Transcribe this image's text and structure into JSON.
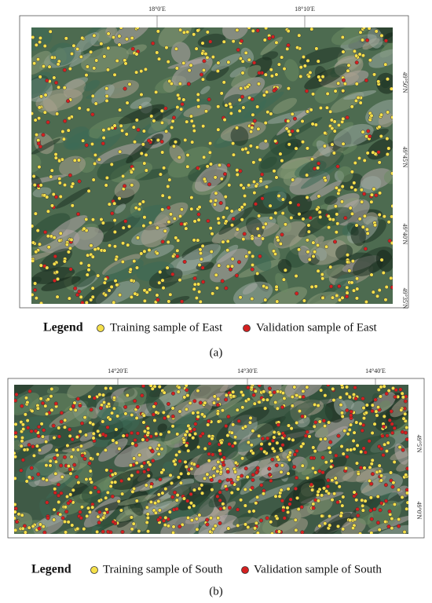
{
  "panels": [
    {
      "top_labels": [
        "18°0′E",
        "18°10′E"
      ],
      "right_labels": [
        "49°50′N",
        "49°45′N",
        "49°40′N",
        "49°35′N"
      ],
      "legend": {
        "title": "Legend",
        "items": [
          "Training sample of East",
          "Validation sample of East"
        ]
      },
      "caption": "(a)"
    },
    {
      "top_labels": [
        "14°20′E",
        "14°30′E",
        "14°40′E"
      ],
      "right_labels": [
        "49°5′N",
        "49°0′N"
      ],
      "legend": {
        "title": "Legend",
        "items": [
          "Training sample of South",
          "Validation sample of South"
        ]
      },
      "caption": "(b)"
    }
  ]
}
